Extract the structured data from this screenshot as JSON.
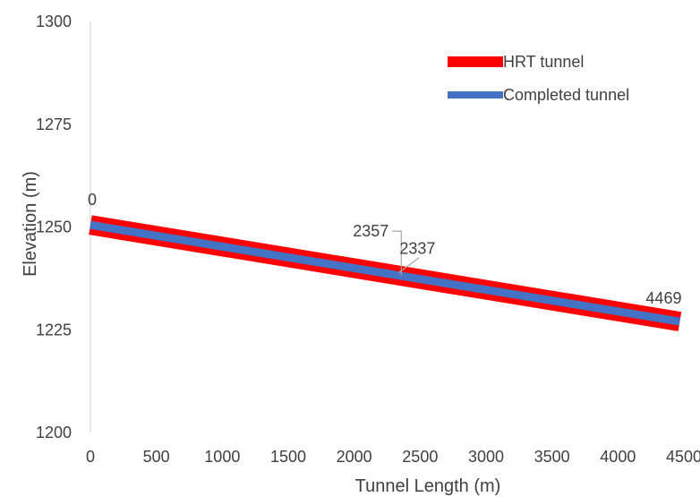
{
  "chart_data": {
    "type": "line",
    "title": "",
    "xlabel": "Tunnel Length (m)",
    "ylabel": "Elevation (m)",
    "xlim": [
      0,
      4500
    ],
    "ylim": [
      1200,
      1300
    ],
    "x_ticks": [
      "0",
      "500",
      "1000",
      "1500",
      "2000",
      "2500",
      "3000",
      "3500",
      "4000",
      "4500"
    ],
    "y_ticks": [
      "1200",
      "1225",
      "1250",
      "1275",
      "1300"
    ],
    "grid": false,
    "legend_position": "top-right",
    "series": [
      {
        "name": "HRT tunnel",
        "color": "#FF0000",
        "x": [
          0,
          4469
        ],
        "y": [
          1250.5,
          1227
        ]
      },
      {
        "name": "Completed tunnel",
        "color": "#4472C4",
        "x": [
          0,
          4469
        ],
        "y": [
          1250.5,
          1227
        ]
      }
    ],
    "annotations": [
      {
        "text": "0",
        "x": 0,
        "y": 1250.5
      },
      {
        "text": "2357",
        "x": 2357,
        "y": 1238.1,
        "callout": true
      },
      {
        "text": "2337",
        "x": 2337,
        "y": 1238.2
      },
      {
        "text": "4469",
        "x": 4469,
        "y": 1227
      }
    ]
  }
}
